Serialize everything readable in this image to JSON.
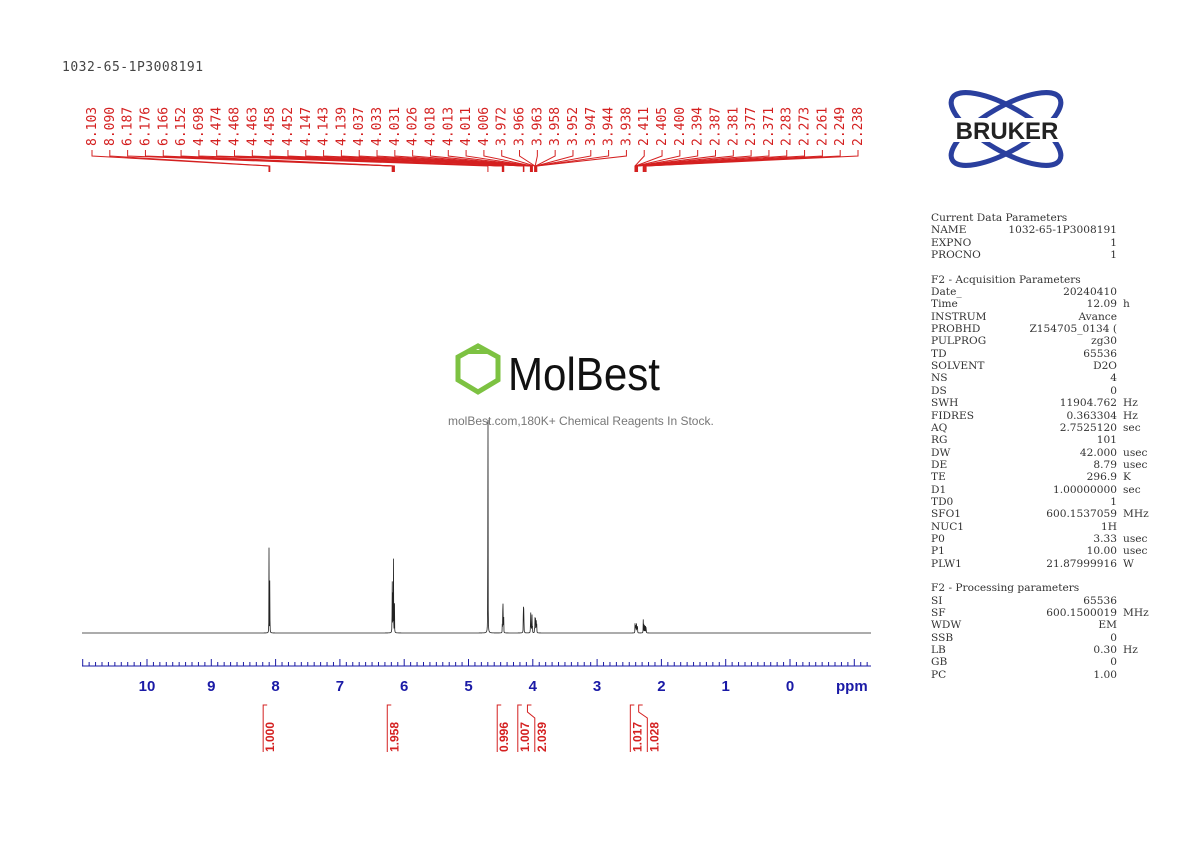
{
  "title": "1032-65-1P3008191",
  "logo": {
    "brand": "BRUKER",
    "color": "#2a3f9e"
  },
  "watermark": {
    "name": "MolBest",
    "caption": "molBest.com,180K+ Chemical Reagents In Stock.",
    "color": "#7dc242"
  },
  "parameters": [
    {
      "header": "Current Data Parameters"
    },
    {
      "k": "NAME",
      "v": "1032-65-1P3008191",
      "u": ""
    },
    {
      "k": "EXPNO",
      "v": "1",
      "u": ""
    },
    {
      "k": "PROCNO",
      "v": "1",
      "u": ""
    },
    {
      "gap": true
    },
    {
      "header": "F2 - Acquisition Parameters"
    },
    {
      "k": "Date_",
      "v": "20240410",
      "u": ""
    },
    {
      "k": "Time",
      "v": "12.09",
      "u": "h"
    },
    {
      "k": "INSTRUM",
      "v": "Avance",
      "u": ""
    },
    {
      "k": "PROBHD",
      "v": "Z154705_0134 (",
      "u": ""
    },
    {
      "k": "PULPROG",
      "v": "zg30",
      "u": ""
    },
    {
      "k": "TD",
      "v": "65536",
      "u": ""
    },
    {
      "k": "SOLVENT",
      "v": "D2O",
      "u": ""
    },
    {
      "k": "NS",
      "v": "4",
      "u": ""
    },
    {
      "k": "DS",
      "v": "0",
      "u": ""
    },
    {
      "k": "SWH",
      "v": "11904.762",
      "u": "Hz"
    },
    {
      "k": "FIDRES",
      "v": "0.363304",
      "u": "Hz"
    },
    {
      "k": "AQ",
      "v": "2.7525120",
      "u": "sec"
    },
    {
      "k": "RG",
      "v": "101",
      "u": ""
    },
    {
      "k": "DW",
      "v": "42.000",
      "u": "usec"
    },
    {
      "k": "DE",
      "v": "8.79",
      "u": "usec"
    },
    {
      "k": "TE",
      "v": "296.9",
      "u": "K"
    },
    {
      "k": "D1",
      "v": "1.00000000",
      "u": "sec"
    },
    {
      "k": "TD0",
      "v": "1",
      "u": ""
    },
    {
      "k": "SFO1",
      "v": "600.1537059",
      "u": "MHz"
    },
    {
      "k": "NUC1",
      "v": "1H",
      "u": ""
    },
    {
      "k": "P0",
      "v": "3.33",
      "u": "usec"
    },
    {
      "k": "P1",
      "v": "10.00",
      "u": "usec"
    },
    {
      "k": "PLW1",
      "v": "21.87999916",
      "u": "W"
    },
    {
      "gap": true
    },
    {
      "header": "F2 - Processing parameters"
    },
    {
      "k": "SI",
      "v": "65536",
      "u": ""
    },
    {
      "k": "SF",
      "v": "600.1500019",
      "u": "MHz"
    },
    {
      "k": "WDW",
      "v": "EM",
      "u": ""
    },
    {
      "k": "SSB",
      "v": "0",
      "u": ""
    },
    {
      "k": "LB",
      "v": "0.30",
      "u": "Hz"
    },
    {
      "k": "GB",
      "v": "0",
      "u": ""
    },
    {
      "k": "PC",
      "v": "1.00",
      "u": ""
    }
  ],
  "chart_data": {
    "type": "line",
    "xlabel": "ppm",
    "xlim": [
      11.0,
      -1.25
    ],
    "x_reversed": true,
    "xticks": [
      10,
      9,
      8,
      7,
      6,
      5,
      4,
      3,
      2,
      1,
      0
    ],
    "grid": false,
    "colors": {
      "spectrum": "#222222",
      "annotation": "#d42020",
      "axis": "#1a1aa6"
    },
    "peak_labels": [
      "8.103",
      "8.090",
      "6.187",
      "6.176",
      "6.166",
      "6.152",
      "4.698",
      "4.474",
      "4.468",
      "4.463",
      "4.458",
      "4.452",
      "4.147",
      "4.143",
      "4.139",
      "4.037",
      "4.033",
      "4.031",
      "4.026",
      "4.018",
      "4.013",
      "4.011",
      "4.006",
      "3.972",
      "3.966",
      "3.963",
      "3.958",
      "3.952",
      "3.947",
      "3.944",
      "3.938",
      "2.411",
      "2.405",
      "2.400",
      "2.394",
      "2.387",
      "2.381",
      "2.377",
      "2.371",
      "2.283",
      "2.273",
      "2.261",
      "2.249",
      "2.238"
    ],
    "peaks_relative_intensity": [
      [
        8.103,
        92
      ],
      [
        8.09,
        86
      ],
      [
        6.187,
        95
      ],
      [
        6.176,
        125
      ],
      [
        6.166,
        80
      ],
      [
        6.152,
        55
      ],
      [
        4.698,
        450
      ],
      [
        4.474,
        15
      ],
      [
        4.468,
        25
      ],
      [
        4.463,
        30
      ],
      [
        4.458,
        25
      ],
      [
        4.452,
        15
      ],
      [
        4.147,
        38
      ],
      [
        4.143,
        48
      ],
      [
        4.139,
        38
      ],
      [
        4.037,
        14
      ],
      [
        4.033,
        16
      ],
      [
        4.031,
        16
      ],
      [
        4.026,
        14
      ],
      [
        4.018,
        12
      ],
      [
        4.013,
        14
      ],
      [
        4.011,
        14
      ],
      [
        4.006,
        12
      ],
      [
        3.972,
        12
      ],
      [
        3.966,
        13
      ],
      [
        3.963,
        14
      ],
      [
        3.958,
        13
      ],
      [
        3.952,
        12
      ],
      [
        3.947,
        12
      ],
      [
        3.944,
        12
      ],
      [
        3.938,
        10
      ],
      [
        2.411,
        10
      ],
      [
        2.405,
        12
      ],
      [
        2.4,
        12
      ],
      [
        2.394,
        10
      ],
      [
        2.387,
        9
      ],
      [
        2.381,
        10
      ],
      [
        2.377,
        10
      ],
      [
        2.371,
        8
      ],
      [
        2.283,
        18
      ],
      [
        2.273,
        22
      ],
      [
        2.261,
        24
      ],
      [
        2.249,
        20
      ],
      [
        2.238,
        14
      ]
    ],
    "integrals": [
      {
        "ppm": 8.1,
        "value": "1.000"
      },
      {
        "ppm": 6.17,
        "value": "1.958"
      },
      {
        "ppm": 4.46,
        "value": "0.996"
      },
      {
        "ppm": 4.14,
        "value": "1.007"
      },
      {
        "ppm": 3.99,
        "value": "2.039"
      },
      {
        "ppm": 2.39,
        "value": "1.017"
      },
      {
        "ppm": 2.26,
        "value": "1.028"
      }
    ]
  }
}
